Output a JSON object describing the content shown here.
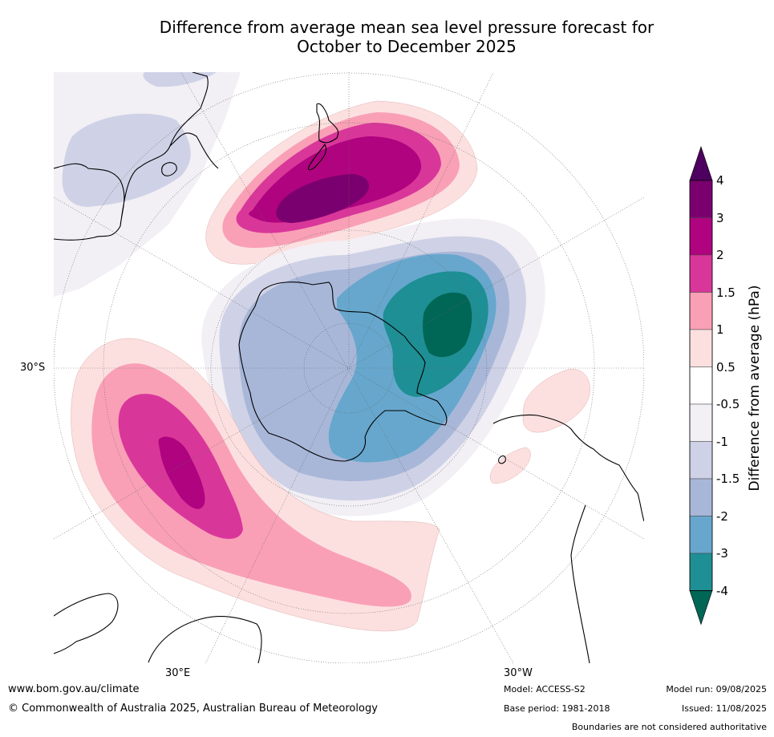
{
  "title_line1": "Difference from average mean sea level pressure forecast for",
  "title_line2": "October to December 2025",
  "graticule_labels": {
    "lat_30s": "30°S",
    "lon_30e": "30°E",
    "lon_30w": "30°W"
  },
  "colorbar": {
    "title": "Difference from average (hPa)",
    "ticks": [
      "4",
      "3",
      "2",
      "1.5",
      "1",
      "0.5",
      "-0.5",
      "-1",
      "-1.5",
      "-2",
      "-3",
      "-4"
    ],
    "colors": [
      "#4d0060",
      "#7b006f",
      "#b0037f",
      "#d9369a",
      "#f9a0b6",
      "#fce0df",
      "#ffffff",
      "#f2eff5",
      "#cfd2e6",
      "#a8b7d8",
      "#67a7cd",
      "#1e8f94",
      "#006656"
    ]
  },
  "footer": {
    "website": "www.bom.gov.au/climate",
    "copyright": "© Commonwealth of Australia 2025, Australian Bureau of Meteorology",
    "model": "Model: ACCESS-S2",
    "base_period": "Base period: 1981-2018",
    "model_run": "Model run: 09/08/2025",
    "issued": "Issued: 11/08/2025",
    "disclaimer": "Boundaries are not considered authoritative"
  }
}
